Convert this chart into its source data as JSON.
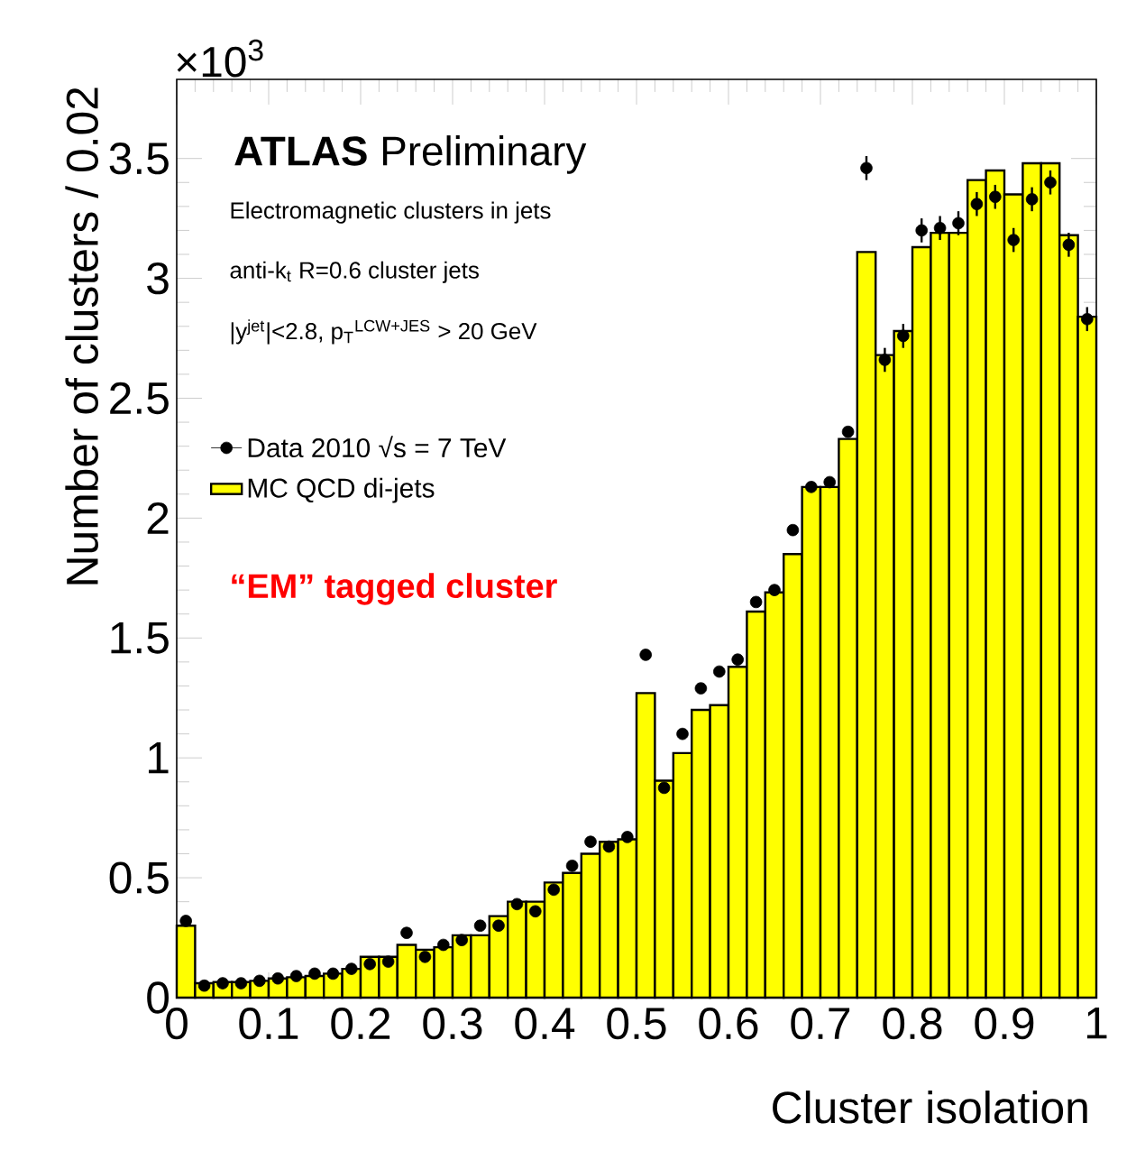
{
  "chart_data": {
    "type": "histogram",
    "title": "**ATLAS** Preliminary",
    "xlabel": "Cluster isolation",
    "ylabel": "Number of clusters / 0.02",
    "annotations": [
      "×10$^{3}$",
      "Electromagnetic clusters in jets",
      "anti-k$_{t}$ R=0.6 cluster jets",
      "|y$^{jet}$|<2.8, p$_{T}$$^{LCW+JES}$ > 20 GeV",
      "“EM” tagged cluster"
    ],
    "bins": [
      0,
      0.02,
      0.04,
      0.06,
      0.08,
      0.1,
      0.12,
      0.14,
      0.16,
      0.18,
      0.2,
      0.22,
      0.24,
      0.26,
      0.28,
      0.3,
      0.32,
      0.34,
      0.36,
      0.38,
      0.4,
      0.42,
      0.44,
      0.46,
      0.48,
      0.5,
      0.52,
      0.54,
      0.56,
      0.58,
      0.6,
      0.62,
      0.64,
      0.66,
      0.68,
      0.7,
      0.72,
      0.74,
      0.76,
      0.78,
      0.8,
      0.82,
      0.84,
      0.86,
      0.88,
      0.9,
      0.92,
      0.94,
      0.96,
      0.98,
      1
    ],
    "series": [
      {
        "name": "MC QCD di-jets",
        "color": "#ffff00",
        "values": [
          0.3,
          0.06,
          0.065,
          0.065,
          0.07,
          0.08,
          0.085,
          0.09,
          0.1,
          0.12,
          0.17,
          0.17,
          0.22,
          0.2,
          0.21,
          0.26,
          0.26,
          0.34,
          0.4,
          0.4,
          0.48,
          0.52,
          0.6,
          0.65,
          0.66,
          1.27,
          0.905,
          1.02,
          1.2,
          1.22,
          1.38,
          1.61,
          1.69,
          1.85,
          2.13,
          2.13,
          2.33,
          3.11,
          2.68,
          2.78,
          3.13,
          3.19,
          3.19,
          3.41,
          3.45,
          3.35,
          3.48,
          3.48,
          3.18,
          2.84
        ]
      },
      {
        "name": "Data 2010 √s = 7 TeV",
        "type": "scatter",
        "color": "#000000",
        "x": [
          0.01,
          0.03,
          0.05,
          0.07,
          0.09,
          0.11,
          0.13,
          0.15,
          0.17,
          0.19,
          0.21,
          0.23,
          0.25,
          0.27,
          0.29,
          0.31,
          0.33,
          0.35,
          0.37,
          0.39,
          0.41,
          0.43,
          0.45,
          0.47,
          0.49,
          0.51,
          0.53,
          0.55,
          0.57,
          0.59,
          0.61,
          0.63,
          0.65,
          0.67,
          0.69,
          0.71,
          0.73,
          0.75,
          0.77,
          0.79,
          0.81,
          0.83,
          0.85,
          0.87,
          0.89,
          0.91,
          0.93,
          0.95,
          0.97,
          0.99
        ],
        "values": [
          0.32,
          0.05,
          0.06,
          0.06,
          0.07,
          0.08,
          0.09,
          0.1,
          0.1,
          0.12,
          0.14,
          0.15,
          0.27,
          0.17,
          0.22,
          0.24,
          0.3,
          0.3,
          0.39,
          0.36,
          0.45,
          0.55,
          0.65,
          0.63,
          0.67,
          1.43,
          0.875,
          1.1,
          1.29,
          1.36,
          1.41,
          1.65,
          1.7,
          1.95,
          2.13,
          2.15,
          2.36,
          3.46,
          2.66,
          2.76,
          3.2,
          3.21,
          3.23,
          3.31,
          3.34,
          3.16,
          3.33,
          3.4,
          3.14,
          2.83
        ],
        "errors": [
          null,
          null,
          null,
          null,
          null,
          null,
          null,
          null,
          null,
          null,
          null,
          null,
          null,
          null,
          null,
          null,
          null,
          null,
          null,
          null,
          null,
          null,
          null,
          null,
          null,
          null,
          null,
          null,
          null,
          null,
          null,
          null,
          null,
          null,
          null,
          null,
          null,
          0.05,
          0.05,
          0.05,
          0.05,
          0.05,
          0.05,
          0.05,
          0.05,
          0.05,
          0.05,
          0.05,
          0.05,
          0.05
        ]
      }
    ],
    "xlim": [
      0,
      1
    ],
    "ylim": [
      0,
      3.83
    ],
    "xticks": [
      0,
      0.1,
      0.2,
      0.3,
      0.4,
      0.5,
      0.6,
      0.7,
      0.8,
      0.9,
      1
    ],
    "yticks": [
      0,
      0.5,
      1,
      1.5,
      2,
      2.5,
      3,
      3.5
    ],
    "marker": "circle",
    "legend": "top left"
  }
}
